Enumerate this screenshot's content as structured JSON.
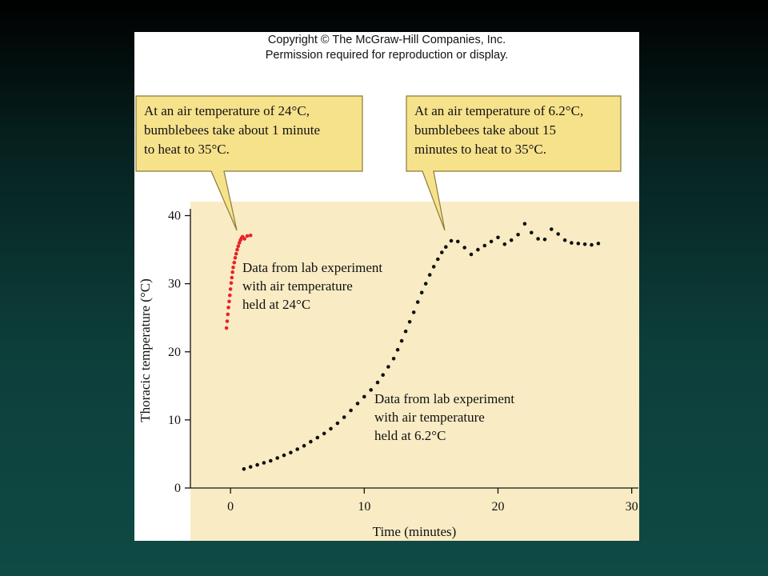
{
  "copyright": {
    "line1": "Copyright © The McGraw-Hill Companies, Inc.",
    "line2": "Permission required for reproduction or display."
  },
  "callouts": [
    {
      "lines": [
        "At an air temperature of 24°C,",
        "bumblebees take about 1 minute",
        "to heat to 35°C."
      ]
    },
    {
      "lines": [
        "At an air temperature of 6.2°C,",
        "bumblebees take about 15",
        "minutes to heat to 35°C."
      ]
    }
  ],
  "annotations": [
    {
      "lines": [
        "Data from lab experiment",
        "with air temperature",
        "held at 24°C"
      ]
    },
    {
      "lines": [
        "Data from lab experiment",
        "with air temperature",
        "held at 6.2°C"
      ]
    }
  ],
  "colors": {
    "background_dark": "#000000",
    "background_teal": "#0f4a45",
    "plot_area": "#f9ecc4",
    "callout_fill": "#f7e28c",
    "callout_border": "#8c7a3a",
    "series_24C": "#e8232b",
    "series_6_2C": "#111111"
  },
  "chart_data": {
    "type": "scatter",
    "title": "",
    "xlabel": "Time (minutes)",
    "ylabel": "Thoracic temperature (°C)",
    "xlim": [
      -3,
      30.5
    ],
    "ylim": [
      0,
      41
    ],
    "xticks": [
      0,
      10,
      20,
      30
    ],
    "yticks": [
      0,
      10,
      20,
      30,
      40
    ],
    "xtick_labels": [
      "0",
      "10",
      "20",
      "30"
    ],
    "ytick_labels": [
      "0",
      "10",
      "20",
      "30",
      "40"
    ],
    "grid": false,
    "series": [
      {
        "color": "#e8232b",
        "x": [
          -0.3,
          -0.25,
          -0.2,
          -0.15,
          -0.1,
          -0.05,
          0.0,
          0.05,
          0.1,
          0.15,
          0.2,
          0.28,
          0.35,
          0.42,
          0.5,
          0.58,
          0.66,
          0.74,
          0.82,
          0.9,
          1.05,
          1.25,
          1.5
        ],
        "y": [
          23.5,
          24.5,
          25.5,
          26.5,
          27.4,
          28.3,
          29.2,
          30.1,
          30.9,
          31.7,
          32.4,
          33.1,
          33.8,
          34.4,
          35.0,
          35.5,
          36.0,
          36.4,
          36.7,
          36.9,
          36.6,
          37.0,
          37.1
        ]
      },
      {
        "color": "#111111",
        "x": [
          1.0,
          1.5,
          2.0,
          2.5,
          3.0,
          3.5,
          4.0,
          4.5,
          5.0,
          5.5,
          6.0,
          6.5,
          7.0,
          7.5,
          8.0,
          8.5,
          9.0,
          9.5,
          10.0,
          10.5,
          11.0,
          11.4,
          11.8,
          12.2,
          12.5,
          12.8,
          13.1,
          13.4,
          13.7,
          14.0,
          14.3,
          14.6,
          14.9,
          15.2,
          15.5,
          15.8,
          16.1,
          16.5,
          17.0,
          17.5,
          18.0,
          18.5,
          19.0,
          19.5,
          20.0,
          20.5,
          21.0,
          21.5,
          22.0,
          22.5,
          23.0,
          23.5,
          24.0,
          24.5,
          25.0,
          25.5,
          26.0,
          26.5,
          27.0,
          27.5
        ],
        "y": [
          2.8,
          3.1,
          3.4,
          3.7,
          4.0,
          4.4,
          4.8,
          5.2,
          5.7,
          6.2,
          6.8,
          7.4,
          8.0,
          8.7,
          9.5,
          10.4,
          11.4,
          12.4,
          13.4,
          14.4,
          15.5,
          16.6,
          17.8,
          19.0,
          20.3,
          21.6,
          23.0,
          24.4,
          25.8,
          27.3,
          28.7,
          30.0,
          31.3,
          32.5,
          33.6,
          34.6,
          35.4,
          36.3,
          36.2,
          35.3,
          34.3,
          35.0,
          35.6,
          36.2,
          36.8,
          35.8,
          36.4,
          37.2,
          38.8,
          37.5,
          36.6,
          36.5,
          38.0,
          37.3,
          36.4,
          36.0,
          35.9,
          35.8,
          35.7,
          35.9
        ]
      }
    ]
  }
}
